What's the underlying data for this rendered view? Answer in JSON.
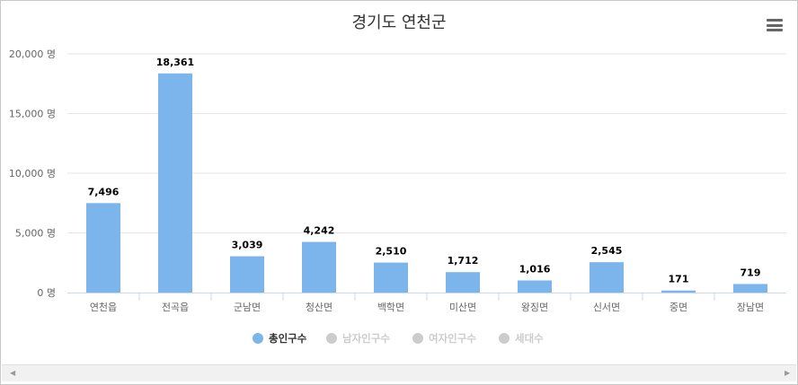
{
  "chart_data": {
    "type": "bar",
    "title": "경기도 연천군",
    "categories": [
      "연천읍",
      "전곡읍",
      "군남면",
      "청산면",
      "백학면",
      "미산면",
      "왕징면",
      "신서면",
      "중면",
      "장남면"
    ],
    "series": [
      {
        "name": "총인구수",
        "values": [
          7496,
          18361,
          3039,
          4242,
          2510,
          1712,
          1016,
          2545,
          171,
          719
        ],
        "color": "#7cb5ec",
        "visible": true
      },
      {
        "name": "남자인구수",
        "visible": false
      },
      {
        "name": "여자인구수",
        "visible": false
      },
      {
        "name": "세대수",
        "visible": false
      }
    ],
    "data_labels": [
      "7,496",
      "18,361",
      "3,039",
      "4,242",
      "2,510",
      "1,712",
      "1,016",
      "2,545",
      "171",
      "719"
    ],
    "y_ticks": [
      "0 명",
      "5,000 명",
      "10,000 명",
      "15,000 명",
      "20,000 명"
    ],
    "ylim": [
      0,
      20000
    ],
    "grid": true,
    "legend_position": "bottom-center"
  },
  "colors": {
    "bar": "#7cb5ec",
    "inactive_legend": "#cccccc",
    "grid": "#e6e6e6"
  },
  "icons": {
    "menu": "hamburger-menu-icon",
    "scroll_left": "arrow-left-icon",
    "scroll_right": "arrow-right-icon"
  }
}
